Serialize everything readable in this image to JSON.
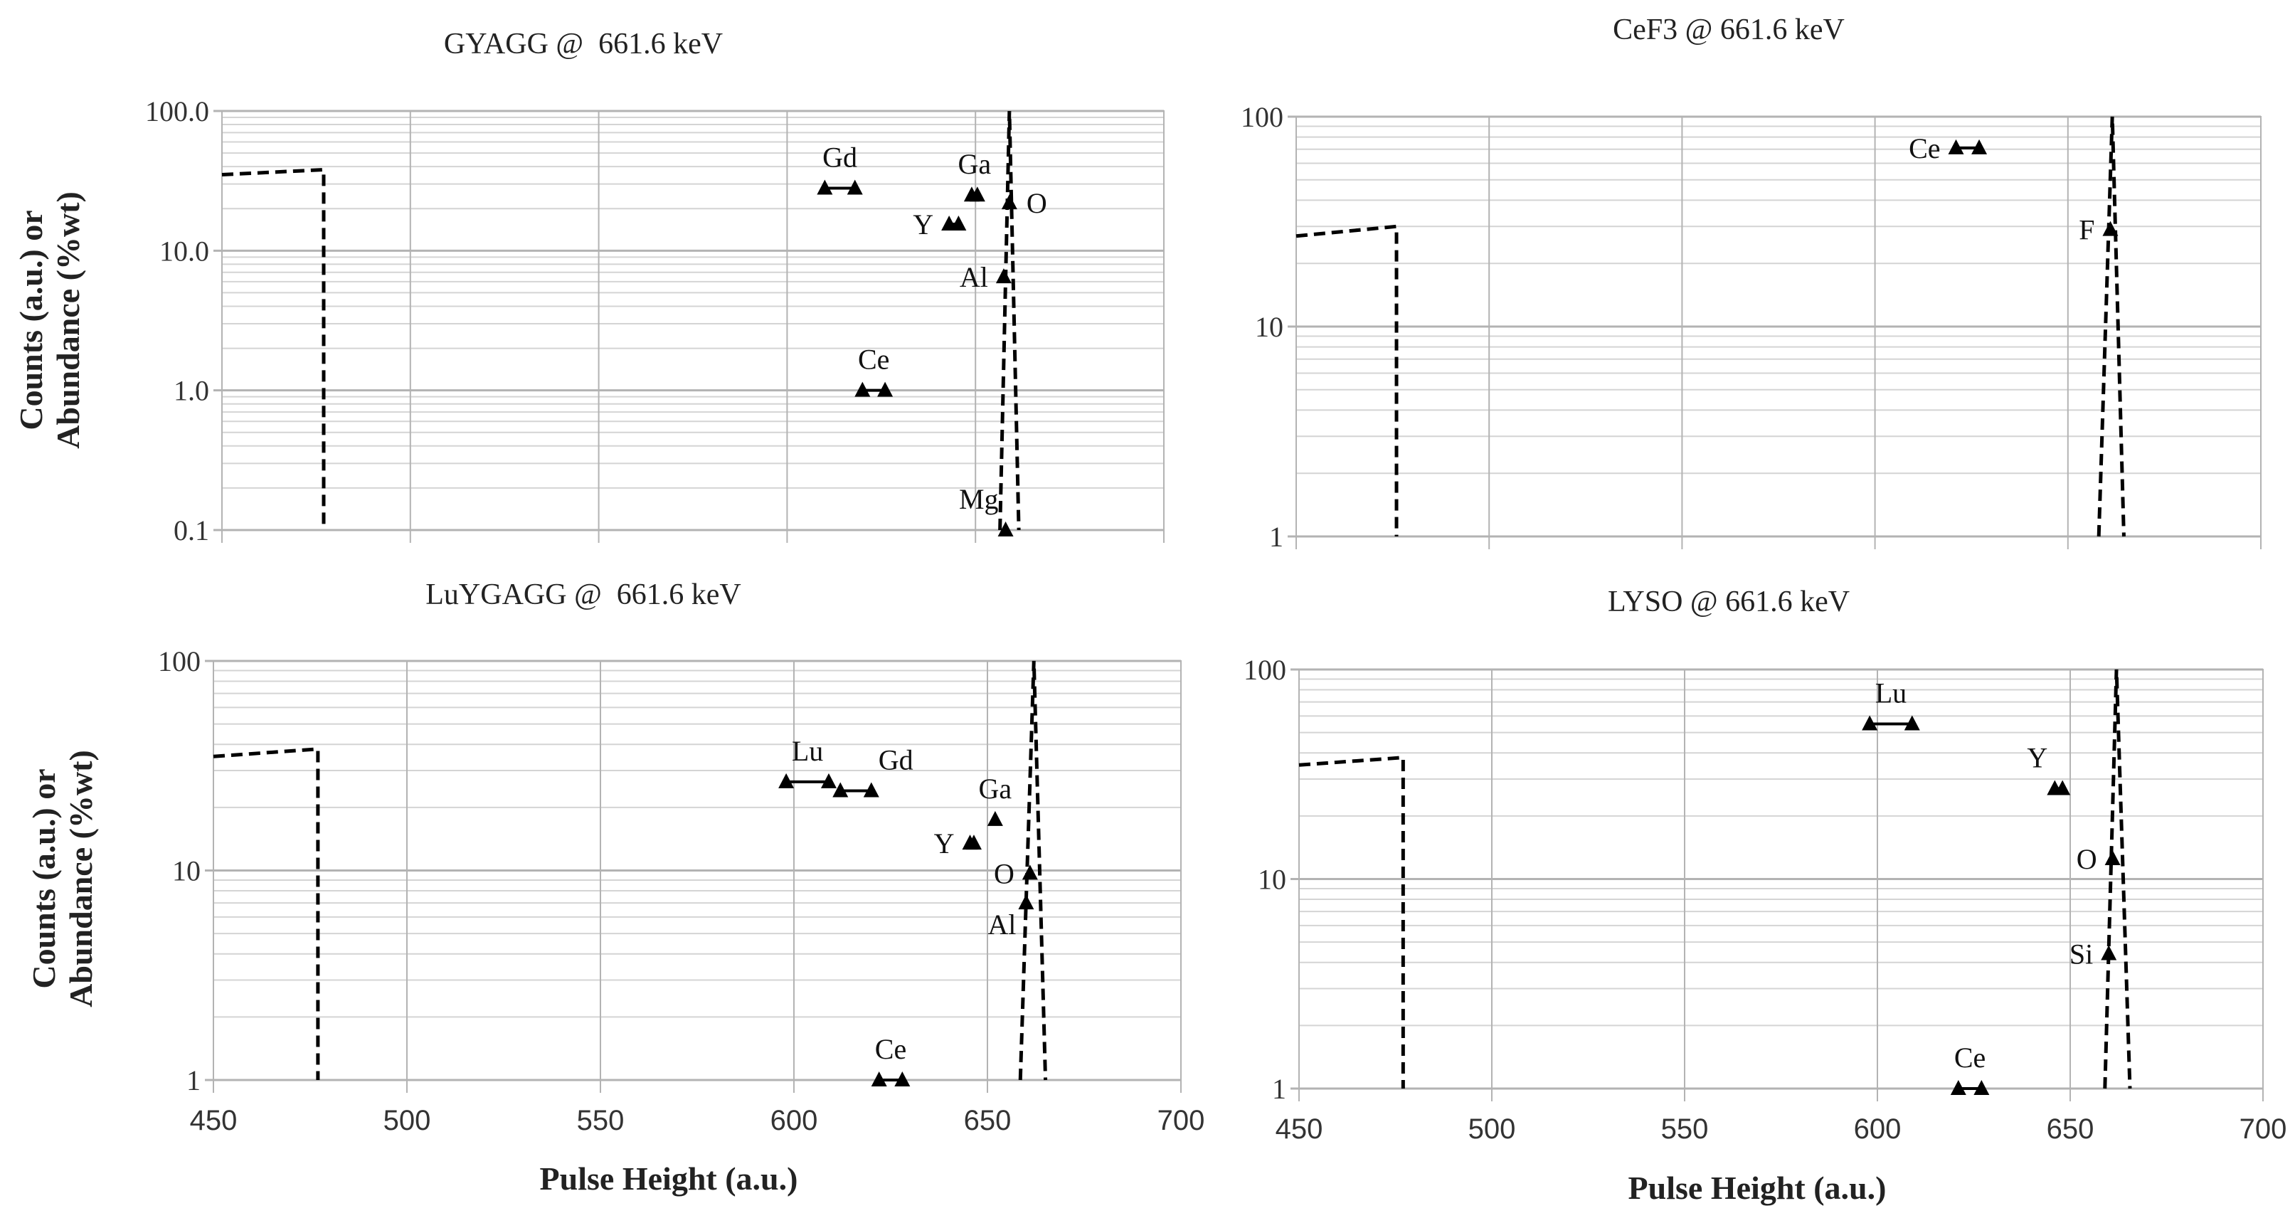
{
  "figure": {
    "y_axis_label_line1": "Counts (a.u.) or",
    "y_axis_label_line2": "Abundance (%wt)",
    "x_axis_label": "Pulse Height (a.u.)"
  },
  "chart_data": [
    {
      "type": "line",
      "title": "GYAGG @  661.6 keV",
      "xlabel": "Pulse Height (a.u.)",
      "ylabel": "Counts (a.u.) or Abundance (%wt)",
      "xlim": [
        450,
        700
      ],
      "ylim": [
        0.1,
        100
      ],
      "yscale": "log",
      "x_ticks": [
        450,
        500,
        550,
        600,
        650,
        700
      ],
      "x_tick_labels_visible": false,
      "y_ticks": [
        0.1,
        1,
        10,
        100
      ],
      "y_tick_labels": [
        "0.1",
        "1.0",
        "10.0",
        "100.0"
      ],
      "grid": true,
      "series": [
        {
          "name": "spectrum-step",
          "style": "dashed",
          "x": [
            450,
            477,
            477
          ],
          "y": [
            35,
            38,
            0.1
          ]
        },
        {
          "name": "photopeak",
          "style": "dashed",
          "x": [
            656.5,
            659,
            661.5
          ],
          "y": [
            0.1,
            100,
            0.1
          ]
        }
      ],
      "elements": [
        {
          "label": "Gd",
          "x": [
            610,
            618
          ],
          "y": 28,
          "label_dx": -2,
          "label_dy": -1
        },
        {
          "label": "Ga",
          "x": [
            649,
            650.5
          ],
          "y": 25,
          "label_dx": -2,
          "label_dy": -1
        },
        {
          "label": "O",
          "x": [
            659,
            659
          ],
          "y": 22,
          "label_dx": 1,
          "label_dy": 0
        },
        {
          "label": "Y",
          "x": [
            643,
            645.5
          ],
          "y": 15.5,
          "label_dx": -1,
          "label_dy": 0
        },
        {
          "label": "Al",
          "x": [
            657.5,
            657.5
          ],
          "y": 6.5,
          "label_dx": -1,
          "label_dy": 0
        },
        {
          "label": "Ce",
          "x": [
            620,
            626
          ],
          "y": 1.0,
          "label_dx": -2,
          "label_dy": -1
        },
        {
          "label": "Mg",
          "x": [
            658,
            658
          ],
          "y": 0.1,
          "label_dx": -1,
          "label_dy": -1
        }
      ]
    },
    {
      "type": "line",
      "title": "CeF3 @ 661.6 keV",
      "xlabel": "",
      "ylabel": "",
      "xlim": [
        450,
        700
      ],
      "ylim": [
        1,
        100
      ],
      "yscale": "log",
      "x_ticks": [
        450,
        500,
        550,
        600,
        650,
        700
      ],
      "x_tick_labels_visible": false,
      "y_ticks": [
        1,
        10,
        100
      ],
      "y_tick_labels": [
        "1",
        "10",
        "100"
      ],
      "grid": true,
      "series": [
        {
          "name": "spectrum-step",
          "style": "dashed",
          "x": [
            450,
            476,
            476
          ],
          "y": [
            27,
            30,
            1
          ]
        },
        {
          "name": "photopeak",
          "style": "dashed",
          "x": [
            658,
            661.5,
            664.5
          ],
          "y": [
            1,
            100,
            1
          ]
        }
      ],
      "elements": [
        {
          "label": "Ce",
          "x": [
            621,
            627
          ],
          "y": 71,
          "label_dx": -1,
          "label_dy": 0
        },
        {
          "label": "F",
          "x": [
            661,
            661
          ],
          "y": 29,
          "label_dx": -1,
          "label_dy": 0
        }
      ]
    },
    {
      "type": "line",
      "title": "LuYGAGG @  661.6 keV",
      "xlabel": "Pulse Height (a.u.)",
      "ylabel": "Counts (a.u.) or Abundance (%wt)",
      "xlim": [
        450,
        700
      ],
      "ylim": [
        1,
        100
      ],
      "yscale": "log",
      "x_ticks": [
        450,
        500,
        550,
        600,
        650,
        700
      ],
      "x_tick_labels_visible": true,
      "x_tick_labels": [
        "450",
        "500",
        "550",
        "600",
        "650",
        "700"
      ],
      "y_ticks": [
        1,
        10,
        100
      ],
      "y_tick_labels": [
        "1",
        "10",
        "100"
      ],
      "grid": true,
      "series": [
        {
          "name": "spectrum-step",
          "style": "dashed",
          "x": [
            450,
            477,
            477
          ],
          "y": [
            35,
            38,
            1
          ]
        },
        {
          "name": "photopeak",
          "style": "dashed",
          "x": [
            658.5,
            662,
            665
          ],
          "y": [
            1,
            100,
            1
          ]
        }
      ],
      "elements": [
        {
          "label": "Lu",
          "x": [
            598,
            609
          ],
          "y": 26.5,
          "label_dx": -2,
          "label_dy": -1
        },
        {
          "label": "Gd",
          "x": [
            612,
            620
          ],
          "y": 24,
          "label_dx": 2,
          "label_dy": -1
        },
        {
          "label": "Ga",
          "x": [
            652,
            652
          ],
          "y": 17.5,
          "label_dx": -2,
          "label_dy": -1
        },
        {
          "label": "Y",
          "x": [
            645.5,
            646.5
          ],
          "y": 13.5,
          "label_dx": -1,
          "label_dy": 0
        },
        {
          "label": "O",
          "x": [
            661,
            661
          ],
          "y": 9.7,
          "label_dx": -1,
          "label_dy": 0
        },
        {
          "label": "Al",
          "x": [
            660,
            660
          ],
          "y": 7,
          "label_dx": -1,
          "label_dy": 1
        },
        {
          "label": "Ce",
          "x": [
            622,
            628
          ],
          "y": 1.0,
          "label_dx": -2,
          "label_dy": -1
        }
      ]
    },
    {
      "type": "line",
      "title": "LYSO @ 661.6 keV",
      "xlabel": "Pulse Height (a.u.)",
      "ylabel": "",
      "xlim": [
        450,
        700
      ],
      "ylim": [
        1,
        100
      ],
      "yscale": "log",
      "x_ticks": [
        450,
        500,
        550,
        600,
        650,
        700
      ],
      "x_tick_labels_visible": true,
      "x_tick_labels": [
        "450",
        "500",
        "550",
        "600",
        "650",
        "700"
      ],
      "y_ticks": [
        1,
        10,
        100
      ],
      "y_tick_labels": [
        "1",
        "10",
        "100"
      ],
      "grid": true,
      "series": [
        {
          "name": "spectrum-step",
          "style": "dashed",
          "x": [
            450,
            477,
            477
          ],
          "y": [
            35,
            38,
            1
          ]
        },
        {
          "name": "photopeak",
          "style": "dashed",
          "x": [
            659,
            662,
            665.5
          ],
          "y": [
            1,
            100,
            1
          ]
        }
      ],
      "elements": [
        {
          "label": "Lu",
          "x": [
            598,
            609
          ],
          "y": 55,
          "label_dx": -2,
          "label_dy": -1
        },
        {
          "label": "Y",
          "x": [
            646,
            648
          ],
          "y": 27,
          "label_dx": -1,
          "label_dy": -1
        },
        {
          "label": "O",
          "x": [
            661,
            661
          ],
          "y": 12.5,
          "label_dx": -1,
          "label_dy": 0
        },
        {
          "label": "Si",
          "x": [
            660,
            660
          ],
          "y": 4.4,
          "label_dx": -1,
          "label_dy": 0
        },
        {
          "label": "Ce",
          "x": [
            621,
            627
          ],
          "y": 1.0,
          "label_dx": -2,
          "label_dy": -1
        }
      ]
    }
  ]
}
